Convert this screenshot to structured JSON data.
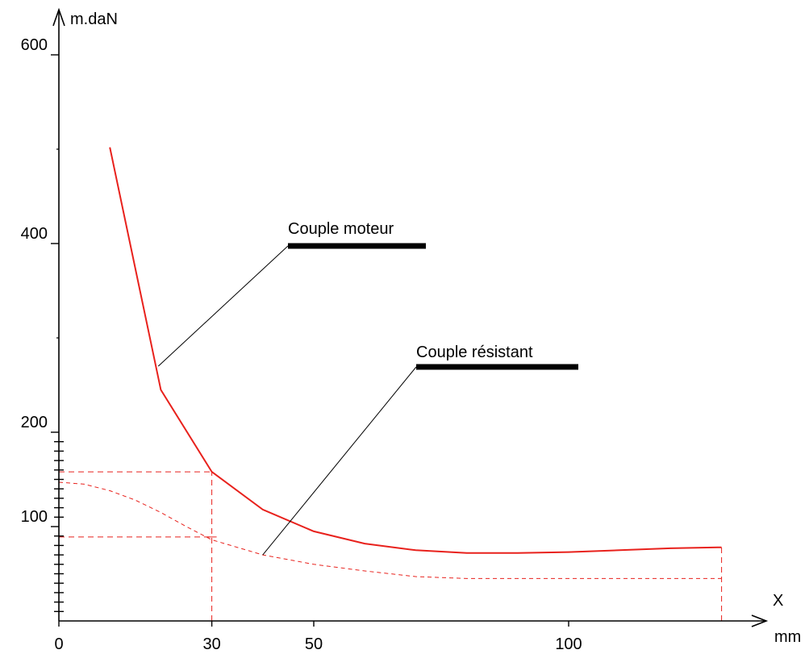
{
  "chart_data": {
    "type": "line",
    "title": "",
    "ylabel": "m.daN",
    "xlabel": "X",
    "xunit": "mm",
    "xlim": [
      0,
      135
    ],
    "ylim": [
      0,
      620
    ],
    "x_ticks": [
      0,
      30,
      50,
      100
    ],
    "y_ticks": [
      100,
      200,
      400,
      600
    ],
    "series": [
      {
        "name": "Couple moteur",
        "color": "#e8211c",
        "style": "solid",
        "x": [
          10,
          20,
          30,
          40,
          50,
          60,
          70,
          80,
          90,
          100,
          110,
          120,
          130
        ],
        "y": [
          502,
          245,
          158,
          118,
          95,
          82,
          75,
          72,
          72,
          73,
          75,
          77,
          78
        ]
      },
      {
        "name": "Couple résistant",
        "color": "#e8211c",
        "style": "dashed",
        "x": [
          0,
          5,
          10,
          15,
          20,
          25,
          30,
          40,
          50,
          60,
          70,
          80,
          90,
          100,
          110,
          120,
          130
        ],
        "y": [
          147,
          145,
          138,
          128,
          115,
          100,
          86,
          70,
          60,
          53,
          47,
          45,
          45,
          45,
          45,
          45,
          45
        ]
      }
    ],
    "reference_lines": [
      {
        "kind": "horizontal",
        "y": 158,
        "x_from": 0,
        "x_to": 30
      },
      {
        "kind": "horizontal",
        "y": 89,
        "x_from": 0,
        "x_to": 30
      },
      {
        "kind": "vertical",
        "x": 30,
        "y_from": 0,
        "y_to": 158
      },
      {
        "kind": "vertical",
        "x": 130,
        "y_from": 0,
        "y_to": 78
      }
    ],
    "annotations": [
      {
        "text": "Couple moteur",
        "target_series": 0,
        "target": [
          19.5,
          270
        ]
      },
      {
        "text": "Couple résistant",
        "target_series": 1,
        "target": [
          40,
          70
        ]
      }
    ]
  }
}
